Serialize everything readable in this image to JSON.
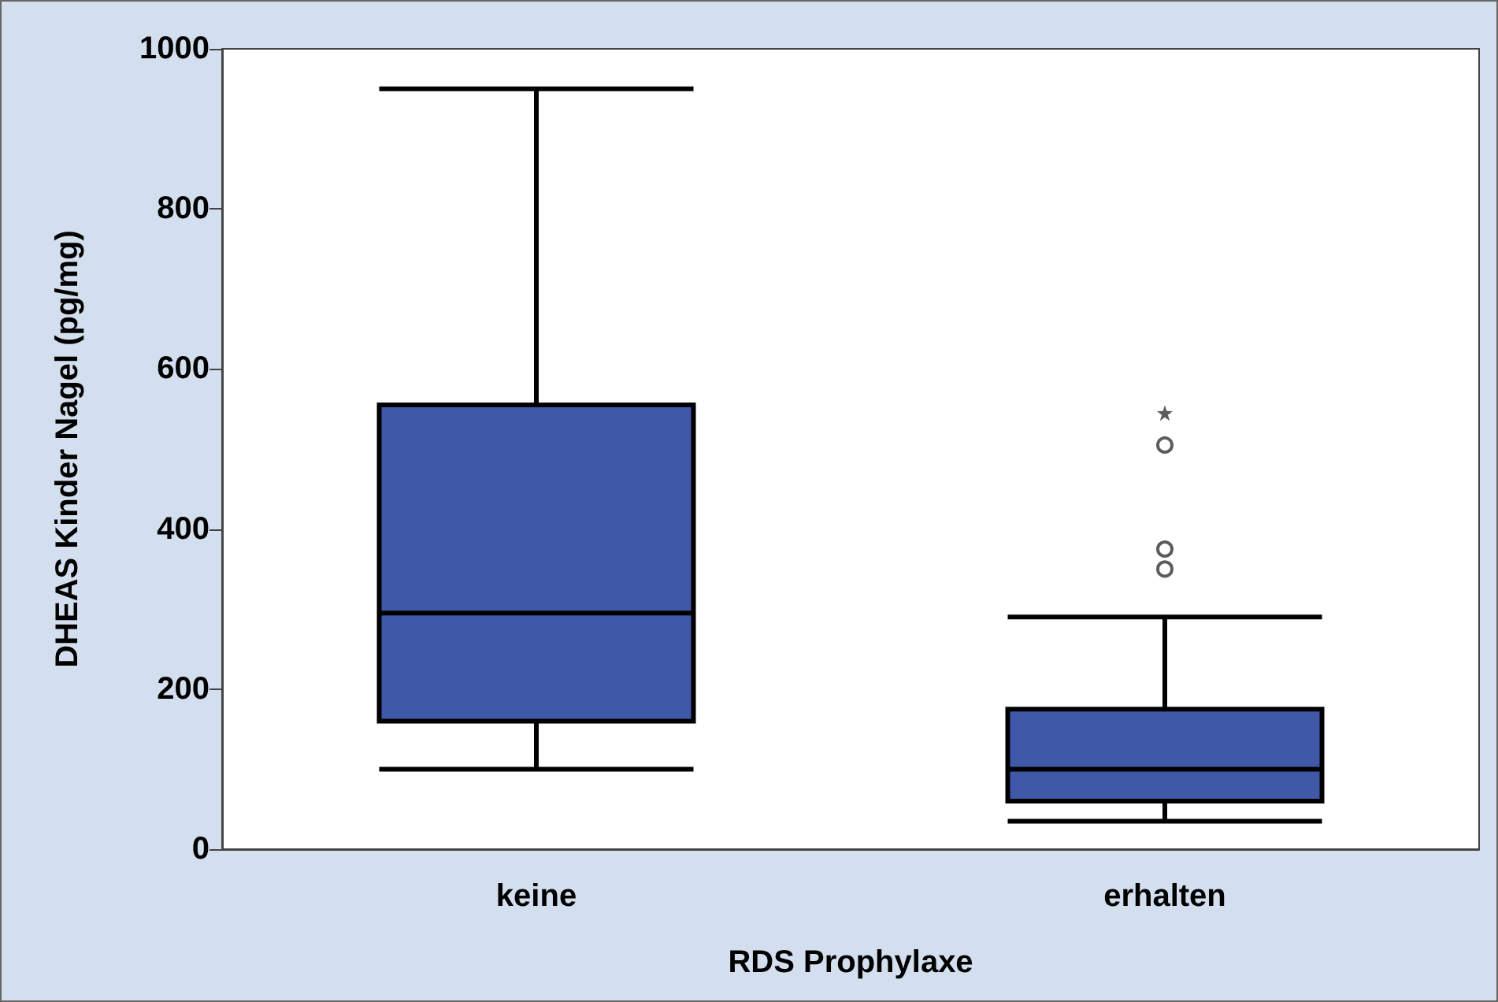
{
  "chart_data": {
    "type": "box",
    "xlabel": "RDS Prophylaxe",
    "ylabel": "DHEAS Kinder Nagel (pg/mg)",
    "categories": [
      "keine",
      "erhalten"
    ],
    "ylim": [
      0,
      1000
    ],
    "yticks": [
      0,
      200,
      400,
      600,
      800,
      1000
    ],
    "grid": false,
    "series": [
      {
        "color": "#3f59a8",
        "boxes": [
          {
            "low": 100,
            "q1": 160,
            "median": 295,
            "q3": 555,
            "high": 950
          },
          {
            "low": 35,
            "q1": 60,
            "median": 100,
            "q3": 175,
            "high": 290,
            "outliers": [
              350,
              375,
              505
            ]
          }
        ]
      },
      {
        "type": "scatter",
        "color": "#333333",
        "marker": "star",
        "x": [
          "erhalten"
        ],
        "values": [
          545
        ]
      }
    ]
  }
}
